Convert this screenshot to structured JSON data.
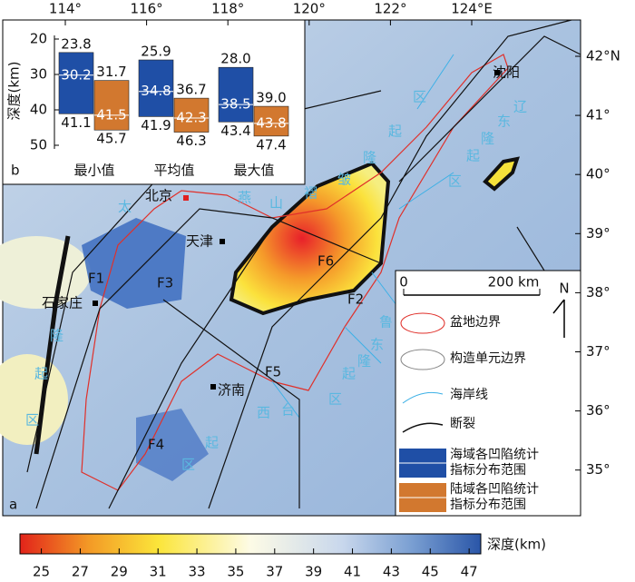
{
  "map": {
    "panel_label": "a",
    "lon_ticks": [
      {
        "value": 114,
        "label": "114°"
      },
      {
        "value": 116,
        "label": "116°"
      },
      {
        "value": 118,
        "label": "118°"
      },
      {
        "value": 120,
        "label": "120°"
      },
      {
        "value": 122,
        "label": "122°"
      },
      {
        "value": 124,
        "label": "124°E"
      }
    ],
    "lat_ticks": [
      {
        "value": 42,
        "label": "42°N"
      },
      {
        "value": 41,
        "label": "41°"
      },
      {
        "value": 40,
        "label": "40°"
      },
      {
        "value": 39,
        "label": "39°"
      },
      {
        "value": 38,
        "label": "38°"
      },
      {
        "value": 37,
        "label": "37°"
      },
      {
        "value": 36,
        "label": "36°"
      },
      {
        "value": 35,
        "label": "35°"
      }
    ],
    "cities": [
      "沈阳",
      "北京",
      "天津",
      "石家庄",
      "济南"
    ],
    "faults": [
      "F1",
      "F2",
      "F3",
      "F4",
      "F5",
      "F6"
    ],
    "region_chars": [
      [
        "太",
        "隆",
        "起",
        "区"
      ],
      [
        "燕",
        "山",
        "褶",
        "皱",
        "隆",
        "起",
        "区"
      ],
      [
        "辽",
        "东",
        "隆",
        "起",
        "区"
      ],
      [
        "鲁",
        "东",
        "隆",
        "起",
        "区"
      ],
      [
        "西",
        "台",
        "起",
        "区"
      ]
    ],
    "legend": [
      "盆地边界",
      "构造单元边界",
      "海岸线",
      "断裂"
    ],
    "scale": {
      "zero": "0",
      "label": "200 km"
    },
    "north": "N",
    "colorbar": {
      "title": "深度(km)",
      "lim": [
        23.9,
        47.6
      ],
      "ticks": [
        25,
        27,
        29,
        31,
        33,
        35,
        37,
        39,
        41,
        43,
        45,
        47
      ]
    }
  },
  "chart_data": {
    "type": "floating_bar",
    "panel_label": "b",
    "ylabel": "深度(km)",
    "categories": [
      "最小值",
      "平均值",
      "最大值"
    ],
    "ylim": [
      20,
      50
    ],
    "y_inverted": true,
    "yticks": [
      20,
      30,
      40,
      50
    ],
    "series": [
      {
        "name": "海域各凹陷统计指标分布范围",
        "color": "#1f4fa6",
        "low": [
          23.8,
          25.9,
          28.0
        ],
        "low_labels": [
          "23.8",
          "25.9",
          "28.0"
        ],
        "mid": [
          30.2,
          34.8,
          38.5
        ],
        "mid_labels": [
          "30.2",
          "34.8",
          "38.5"
        ],
        "high": [
          41.1,
          41.9,
          43.4
        ],
        "high_labels": [
          "41.1",
          "41.9",
          "43.4"
        ]
      },
      {
        "name": "陆域各凹陷统计指标分布范围",
        "color": "#d2782f",
        "low": [
          31.7,
          36.7,
          39.0
        ],
        "low_labels": [
          "31.7",
          "36.7",
          "39.0"
        ],
        "mid": [
          41.5,
          42.3,
          43.8
        ],
        "mid_labels": [
          "41.5",
          "42.3",
          "43.8"
        ],
        "high": [
          45.7,
          46.3,
          47.4
        ],
        "high_labels": [
          "45.7",
          "46.3",
          "47.4"
        ]
      }
    ]
  }
}
